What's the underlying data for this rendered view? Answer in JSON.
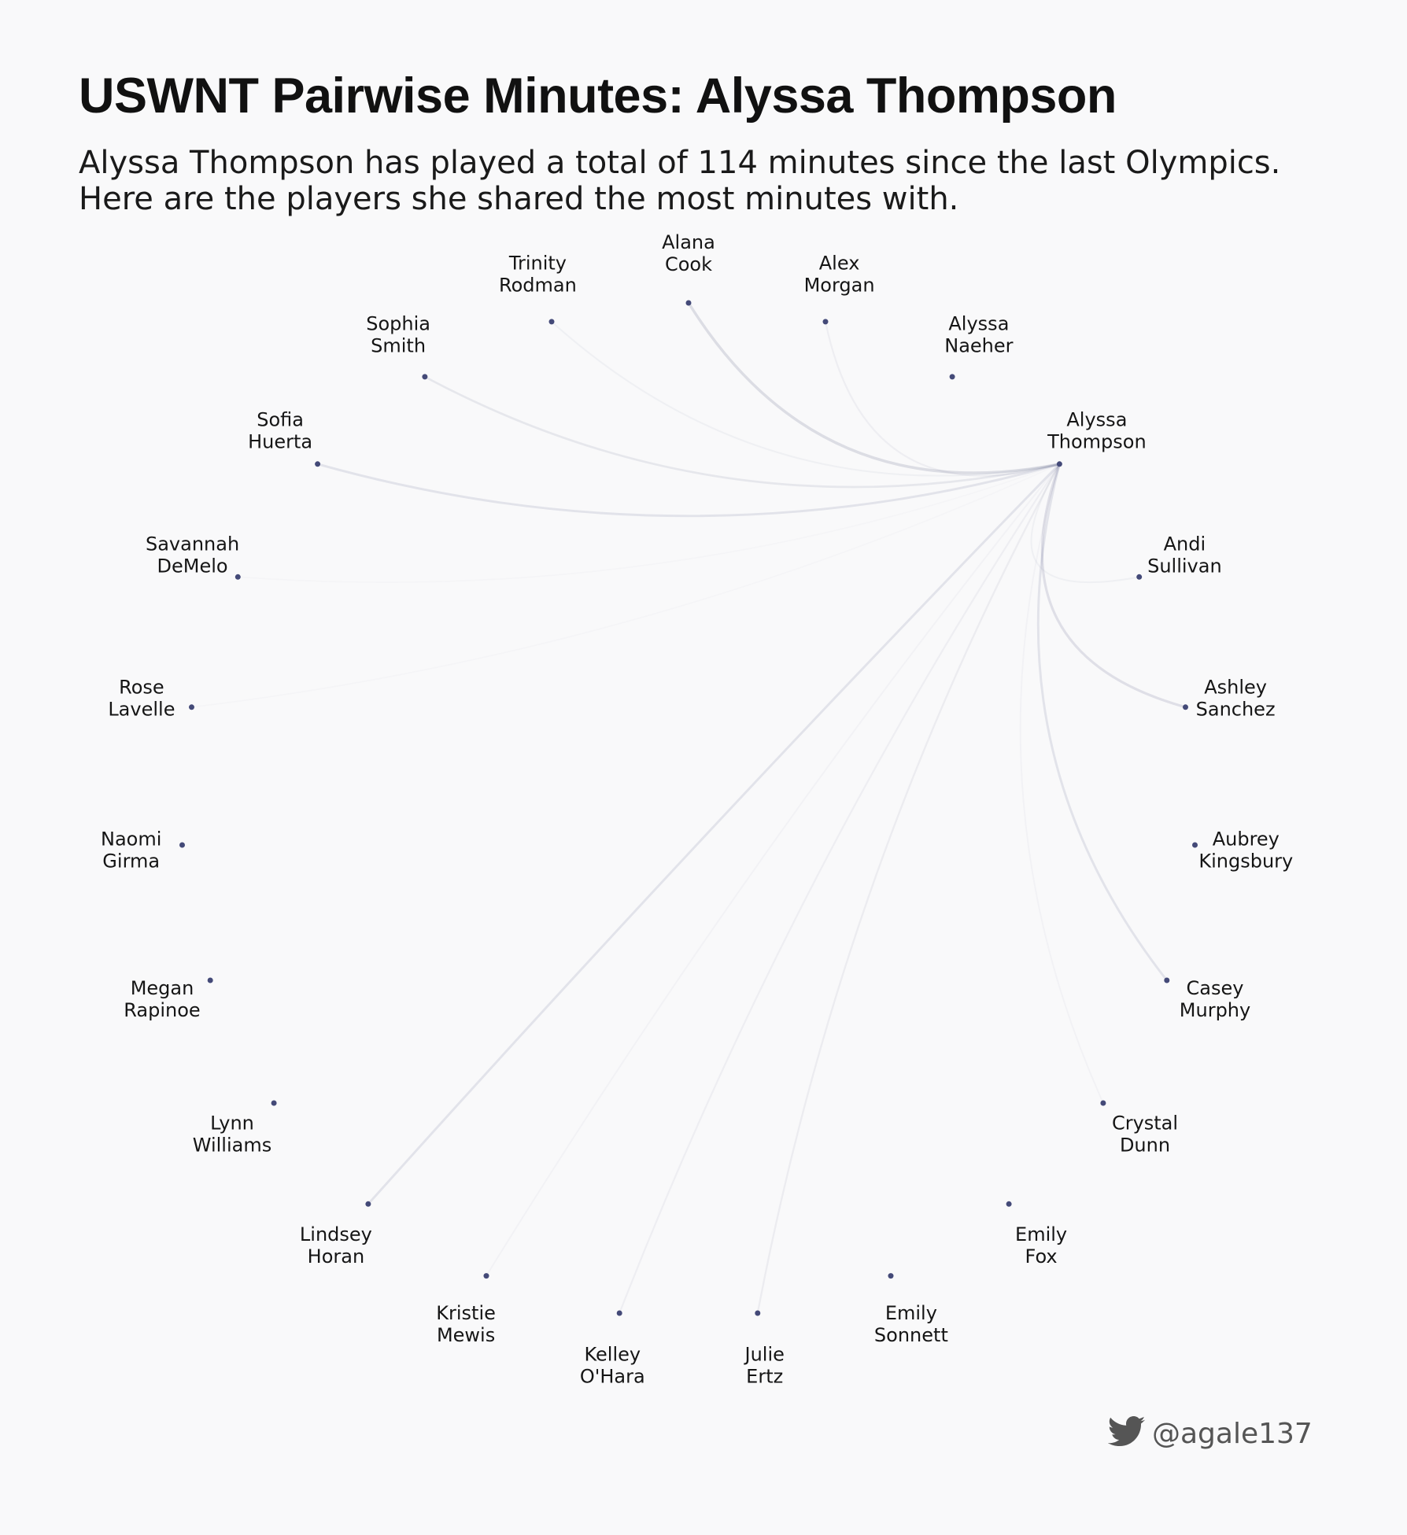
{
  "header": {
    "title": "USWNT Pairwise Minutes: Alyssa Thompson",
    "subtitle": "Alyssa Thompson has played a total of 114 minutes since the last Olympics. Here are the players she shared the most minutes with."
  },
  "network": {
    "focus": "Alyssa Thompson",
    "node_color": "#444a78",
    "edge_color": "#444a78",
    "nodes": [
      {
        "first": "Alana",
        "last": "Cook"
      },
      {
        "first": "Alex",
        "last": "Morgan"
      },
      {
        "first": "Alyssa",
        "last": "Naeher"
      },
      {
        "first": "Alyssa",
        "last": "Thompson"
      },
      {
        "first": "Andi",
        "last": "Sullivan"
      },
      {
        "first": "Ashley",
        "last": "Sanchez"
      },
      {
        "first": "Aubrey",
        "last": "Kingsbury"
      },
      {
        "first": "Casey",
        "last": "Murphy"
      },
      {
        "first": "Crystal",
        "last": "Dunn"
      },
      {
        "first": "Emily",
        "last": "Fox"
      },
      {
        "first": "Emily",
        "last": "Sonnett"
      },
      {
        "first": "Julie",
        "last": "Ertz"
      },
      {
        "first": "Kelley",
        "last": "O'Hara"
      },
      {
        "first": "Kristie",
        "last": "Mewis"
      },
      {
        "first": "Lindsey",
        "last": "Horan"
      },
      {
        "first": "Lynn",
        "last": "Williams"
      },
      {
        "first": "Megan",
        "last": "Rapinoe"
      },
      {
        "first": "Naomi",
        "last": "Girma"
      },
      {
        "first": "Rose",
        "last": "Lavelle"
      },
      {
        "first": "Savannah",
        "last": "DeMelo"
      },
      {
        "first": "Sofia",
        "last": "Huerta"
      },
      {
        "first": "Sophia",
        "last": "Smith"
      },
      {
        "first": "Trinity",
        "last": "Rodman"
      }
    ],
    "edges": [
      {
        "to": "Alana Cook",
        "strength": 0.16
      },
      {
        "to": "Alex Morgan",
        "strength": 0.06
      },
      {
        "to": "Andi Sullivan",
        "strength": 0.05
      },
      {
        "to": "Ashley Sanchez",
        "strength": 0.14
      },
      {
        "to": "Casey Murphy",
        "strength": 0.12
      },
      {
        "to": "Crystal Dunn",
        "strength": 0.04
      },
      {
        "to": "Julie Ertz",
        "strength": 0.07
      },
      {
        "to": "Kelley O'Hara",
        "strength": 0.06
      },
      {
        "to": "Kristie Mewis",
        "strength": 0.04
      },
      {
        "to": "Lindsey Horan",
        "strength": 0.12
      },
      {
        "to": "Rose Lavelle",
        "strength": 0.02
      },
      {
        "to": "Savannah DeMelo",
        "strength": 0.02
      },
      {
        "to": "Sofia Huerta",
        "strength": 0.12
      },
      {
        "to": "Sophia Smith",
        "strength": 0.1
      },
      {
        "to": "Trinity Rodman",
        "strength": 0.05
      }
    ]
  },
  "credit": {
    "icon": "twitter-bird-icon",
    "handle": "@agale137"
  }
}
